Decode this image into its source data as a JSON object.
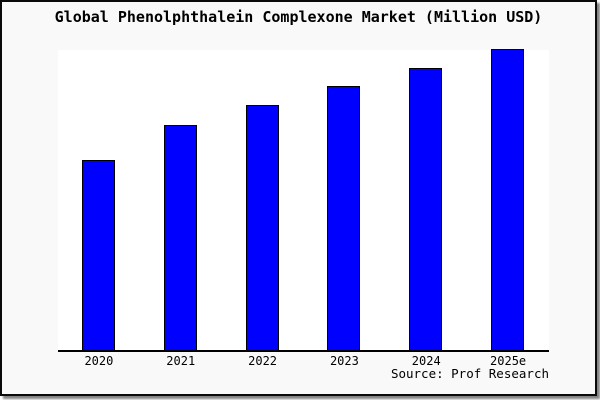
{
  "frame": {
    "background": "#f9f9f9",
    "border_color": "#000000"
  },
  "chart_data": {
    "type": "bar",
    "title": "Global Phenolphthalein Complexone Market (Million USD)",
    "categories": [
      "2020",
      "2021",
      "2022",
      "2023",
      "2024",
      "2025e"
    ],
    "values": [
      62.9,
      74.8,
      81.4,
      87.7,
      93.7,
      100
    ],
    "xlabel": "",
    "ylabel": "",
    "ylim": [
      0,
      100
    ],
    "grid": false,
    "legend": false,
    "y_axis_ticks_visible": false,
    "bar_color": "#0000ff",
    "bar_border_color": "#000000",
    "plot_background": "#ffffff",
    "axis_line_color": "#000000"
  },
  "source": {
    "label": "Source: Prof Research"
  }
}
